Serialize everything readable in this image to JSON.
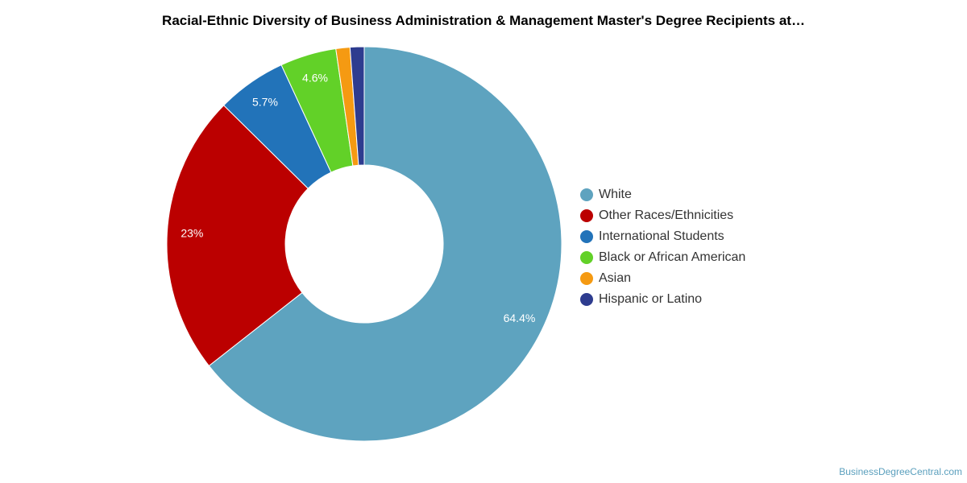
{
  "chart_data": {
    "type": "pie",
    "variant": "donut",
    "title": "Racial-Ethnic Diversity of Business Administration & Management Master's Degree Recipients at…",
    "categories": [
      "White",
      "Other Races/Ethnicities",
      "International Students",
      "Black or African American",
      "Asian",
      "Hispanic or Latino"
    ],
    "values": [
      64.4,
      23,
      5.7,
      4.6,
      1.15,
      1.15
    ],
    "data_labels": [
      "64.4%",
      "23%",
      "5.7%",
      "4.6%",
      "",
      ""
    ],
    "colors": [
      "#5ea3bf",
      "#bb0000",
      "#2273b9",
      "#62d128",
      "#f59a12",
      "#2e3c8f"
    ],
    "legend_position": "right"
  },
  "credit": "BusinessDegreeCentral.com"
}
